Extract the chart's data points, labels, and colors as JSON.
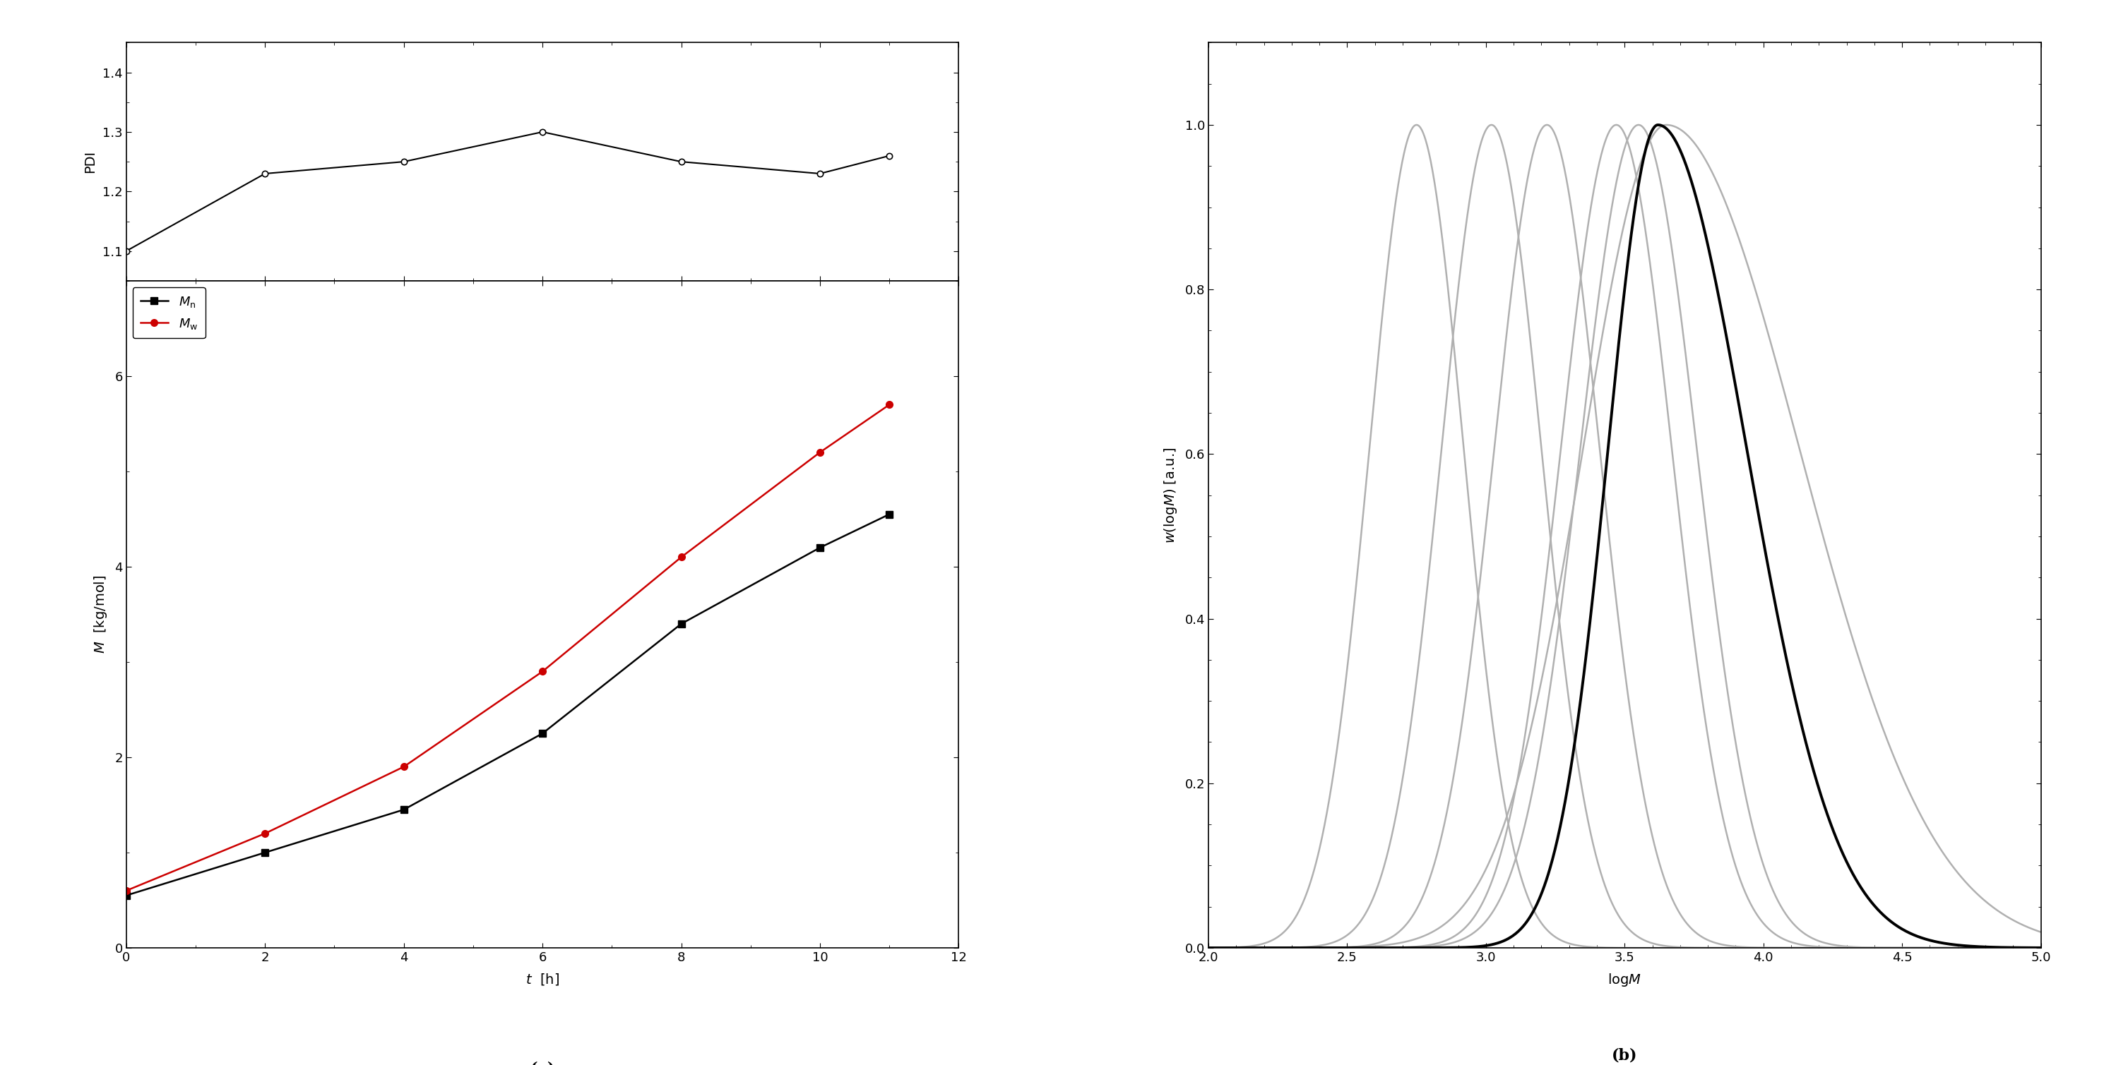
{
  "pdi_time": [
    0,
    2,
    4,
    6,
    8,
    10,
    11
  ],
  "pdi_values": [
    1.1,
    1.23,
    1.25,
    1.3,
    1.25,
    1.23,
    1.26
  ],
  "mn_time": [
    0,
    2,
    4,
    6,
    8,
    10,
    11
  ],
  "mn_values": [
    0.55,
    1.0,
    1.45,
    2.25,
    3.4,
    4.2,
    4.55
  ],
  "mw_time": [
    0,
    2,
    4,
    6,
    8,
    10,
    11
  ],
  "mw_values": [
    0.6,
    1.2,
    1.9,
    2.9,
    4.1,
    5.2,
    5.7
  ],
  "pdi_ylim": [
    1.05,
    1.45
  ],
  "pdi_yticks": [
    1.1,
    1.2,
    1.3,
    1.4
  ],
  "m_ylim": [
    0,
    7
  ],
  "m_yticks": [
    0,
    2,
    4,
    6
  ],
  "t_xlim": [
    0,
    12
  ],
  "t_xticks": [
    0,
    2,
    4,
    6,
    8,
    10,
    12
  ],
  "gpc_grey_peaks": [
    2.75,
    3.02,
    3.22,
    3.47,
    3.55,
    3.65
  ],
  "gpc_grey_sigmas": [
    0.17,
    0.18,
    0.19,
    0.2,
    0.21,
    0.3
  ],
  "gpc_grey_skews": [
    0.0,
    0.0,
    0.0,
    0.0,
    0.0,
    4.0
  ],
  "gpc_black_peak": 3.62,
  "gpc_black_sigma_l": 0.18,
  "gpc_black_sigma_r": 0.32,
  "gpc_xlim": [
    2.0,
    5.0
  ],
  "gpc_xticks": [
    2.0,
    2.5,
    3.0,
    3.5,
    4.0,
    4.5,
    5.0
  ],
  "gpc_ylim": [
    0.0,
    1.1
  ],
  "gpc_yticks": [
    0.0,
    0.2,
    0.4,
    0.6,
    0.8,
    1.0
  ],
  "grey_color": "#b0b0b0",
  "black_color": "#000000",
  "red_color": "#cc0000"
}
